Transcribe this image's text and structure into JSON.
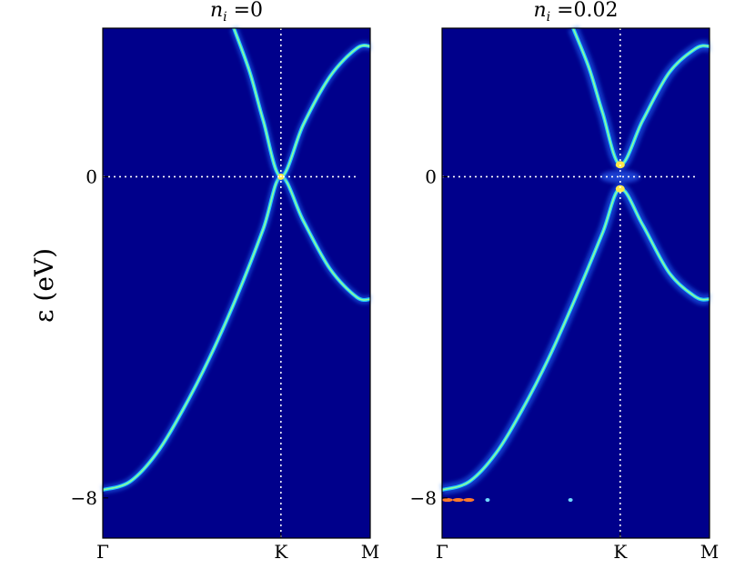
{
  "chart_data": [
    {
      "type": "heatmap",
      "title_var": "n",
      "title_sub": "i",
      "title_value": " =0",
      "ylabel": "ε (eV)",
      "ylim": [
        -9.0,
        3.7
      ],
      "x_ticks": [
        "Γ",
        "K",
        "M"
      ],
      "x_positions": [
        0.0,
        0.666,
        1.0
      ],
      "y_ticks": [
        {
          "value": 0,
          "label": "0"
        },
        {
          "value": -8,
          "label": "−8"
        }
      ],
      "colormap": "jet",
      "background_color": "#00008b",
      "guides": {
        "horizontal_at": 0,
        "vertical_at_k": 0.666,
        "color": "#ffffff"
      },
      "bands": [
        {
          "name": "lower",
          "points": [
            [
              0.0,
              -7.8
            ],
            [
              0.1,
              -7.6
            ],
            [
              0.2,
              -6.9
            ],
            [
              0.3,
              -5.8
            ],
            [
              0.4,
              -4.5
            ],
            [
              0.5,
              -3.0
            ],
            [
              0.6,
              -1.3
            ],
            [
              0.666,
              0.0
            ],
            [
              0.75,
              -1.1
            ],
            [
              0.85,
              -2.3
            ],
            [
              0.95,
              -3.0
            ],
            [
              1.0,
              -3.05
            ]
          ]
        },
        {
          "name": "upper",
          "points": [
            [
              0.49,
              3.7
            ],
            [
              0.55,
              2.6
            ],
            [
              0.6,
              1.4
            ],
            [
              0.666,
              0.0
            ],
            [
              0.75,
              1.3
            ],
            [
              0.85,
              2.5
            ],
            [
              0.95,
              3.2
            ],
            [
              1.0,
              3.25
            ]
          ]
        }
      ],
      "gap": null,
      "impurity_level": null
    },
    {
      "type": "heatmap",
      "title_var": "n",
      "title_sub": "i",
      "title_value": " =0.02",
      "ylabel": "",
      "ylim": [
        -9.0,
        3.7
      ],
      "x_ticks": [
        "Γ",
        "K",
        "M"
      ],
      "x_positions": [
        0.0,
        0.666,
        1.0
      ],
      "y_ticks": [
        {
          "value": 0,
          "label": "0"
        },
        {
          "value": -8,
          "label": "−8"
        }
      ],
      "colormap": "jet",
      "background_color": "#00008b",
      "guides": {
        "horizontal_at": 0,
        "vertical_at_k": 0.666,
        "color": "#ffffff"
      },
      "bands": [
        {
          "name": "lower",
          "points": [
            [
              0.0,
              -7.8
            ],
            [
              0.1,
              -7.6
            ],
            [
              0.2,
              -6.9
            ],
            [
              0.3,
              -5.8
            ],
            [
              0.4,
              -4.5
            ],
            [
              0.5,
              -3.0
            ],
            [
              0.6,
              -1.4
            ],
            [
              0.666,
              -0.3
            ],
            [
              0.75,
              -1.2
            ],
            [
              0.85,
              -2.4
            ],
            [
              0.95,
              -3.0
            ],
            [
              1.0,
              -3.05
            ]
          ]
        },
        {
          "name": "upper",
          "points": [
            [
              0.49,
              3.7
            ],
            [
              0.55,
              2.7
            ],
            [
              0.6,
              1.6
            ],
            [
              0.666,
              0.3
            ],
            [
              0.75,
              1.4
            ],
            [
              0.85,
              2.6
            ],
            [
              0.95,
              3.2
            ],
            [
              1.0,
              3.25
            ]
          ]
        }
      ],
      "gap": [
        -0.3,
        0.3
      ],
      "impurity_level": {
        "energy": -8.05,
        "points": [
          0.02,
          0.06,
          0.1,
          0.17,
          0.48
        ]
      }
    }
  ]
}
